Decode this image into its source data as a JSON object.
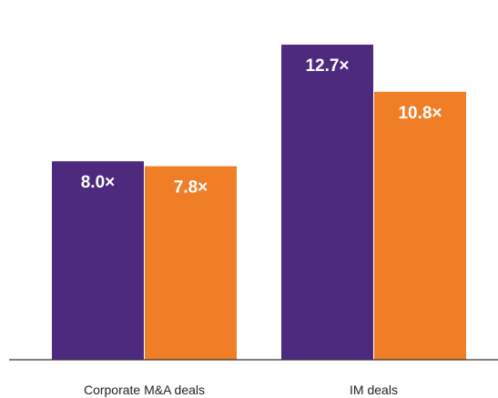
{
  "chart_data": {
    "type": "bar",
    "categories": [
      "Corporate M&A deals",
      "IM deals"
    ],
    "series": [
      {
        "values": [
          8.0,
          12.7
        ],
        "color": "#4e2a7f",
        "labels": [
          "8.0×",
          "12.7×"
        ]
      },
      {
        "values": [
          7.8,
          10.8
        ],
        "color": "#f07e26",
        "labels": [
          "7.8×",
          "10.8×"
        ]
      }
    ],
    "ylim": [
      0,
      14.5
    ],
    "title": "",
    "xlabel": "",
    "ylabel": "",
    "grid": false,
    "axis_color": "#333333"
  }
}
